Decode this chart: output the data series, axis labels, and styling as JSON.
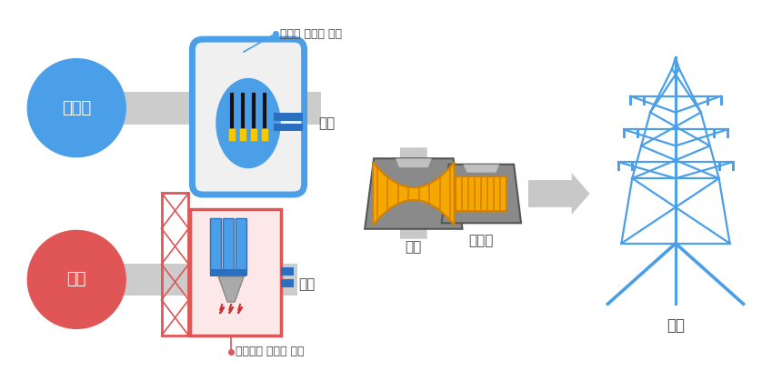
{
  "bg_color": "#ffffff",
  "blue_circle_color": "#4a9fe8",
  "red_circle_color": "#e05555",
  "circle_text_color": "#ffffff",
  "arrow_color": "#c8c8c8",
  "label_color": "#444444",
  "nuclear_label": "원자력",
  "thermal_label": "화력",
  "nuclear_annotation": "핵분열 에너지 사용",
  "thermal_annotation": "화석연료 에너지 사용",
  "steam_label": "증기",
  "turbine_label": "터빈",
  "generator_label": "발전기",
  "transmission_label": "송전",
  "reactor_blue": "#4a9fe8",
  "reactor_dark_blue": "#2a6fc0",
  "reactor_light_gray": "#e8e8e8",
  "turbine_housing": "#8a8a8a",
  "turbine_housing_light": "#aaaaaa",
  "turbine_yellow": "#f5a800",
  "turbine_orange": "#d48000",
  "boiler_red": "#e05555",
  "boiler_blue": "#4a9fe8",
  "tower_blue": "#4a9fe8",
  "pipe_gray": "#cccccc",
  "shaft_gray": "#dddddd"
}
